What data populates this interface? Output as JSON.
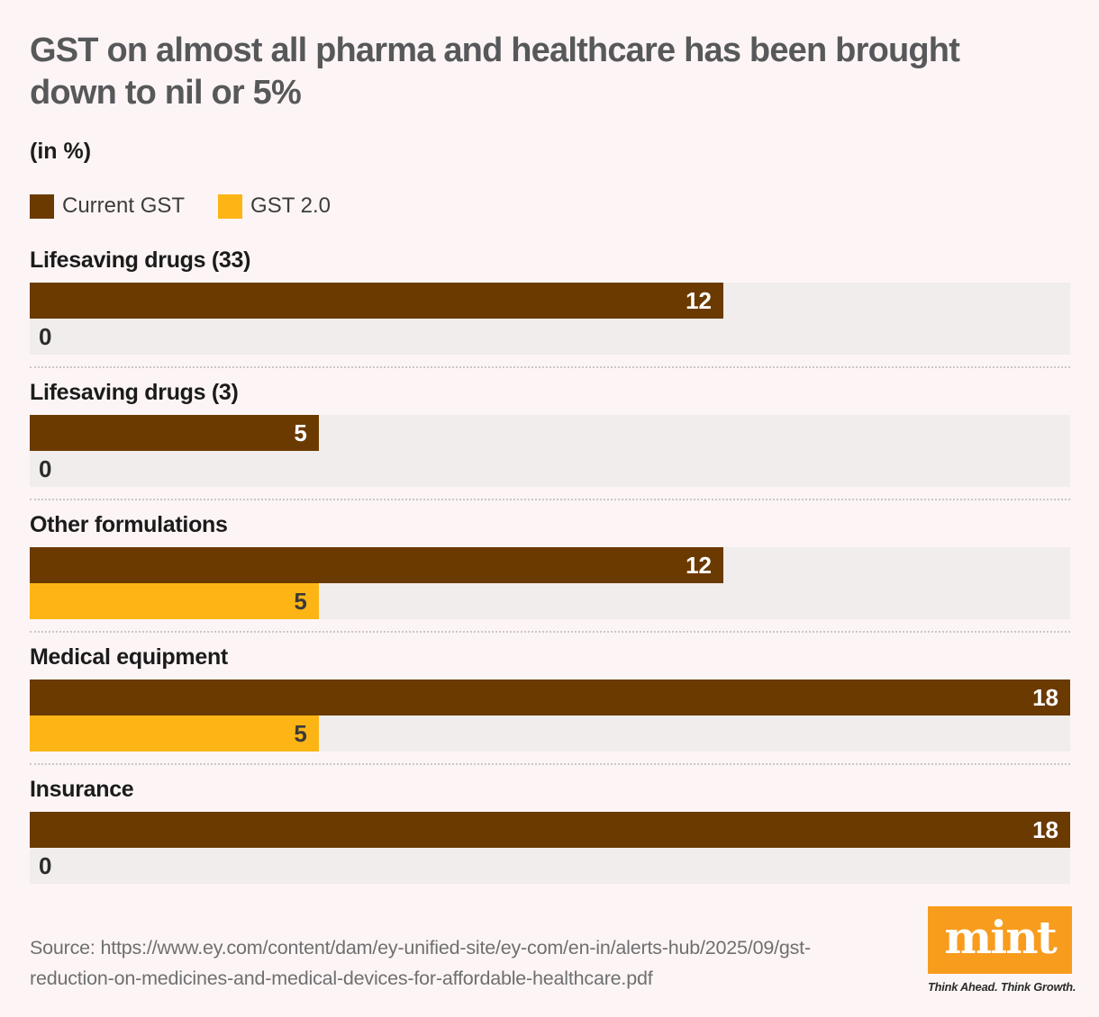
{
  "header": {
    "title_line1": "GST on almost all pharma and healthcare has been brought",
    "title_line2": "down to nil or 5%",
    "unit_label": "(in %)"
  },
  "legend": {
    "items": [
      {
        "label": "Current GST",
        "color": "#6b3a01"
      },
      {
        "label": "GST 2.0",
        "color": "#fcb515"
      }
    ]
  },
  "chart_data": {
    "type": "bar",
    "orientation": "horizontal",
    "title": "GST on almost all pharma and healthcare has been brought down to nil or 5%",
    "unit": "(in %)",
    "xlabel": "",
    "ylabel": "",
    "xlim": [
      0,
      18
    ],
    "grid": false,
    "legend_position": "top",
    "value_labels": "inside-end",
    "categories": [
      "Lifesaving drugs (33)",
      "Lifesaving drugs (3)",
      "Other formulations",
      "Medical equipment",
      "Insurance"
    ],
    "series": [
      {
        "name": "Current GST",
        "color": "#6b3a01",
        "label_color": "#ffffff",
        "values": [
          12,
          5,
          12,
          18,
          18
        ]
      },
      {
        "name": "GST 2.0",
        "color": "#fcb515",
        "label_color": "#3a3a3a",
        "values": [
          0,
          0,
          5,
          5,
          0
        ]
      }
    ]
  },
  "footer": {
    "source_line1": "Source: https://www.ey.com/content/dam/ey-unified-site/ey-com/en-in/alerts-hub/2025/09/gst-",
    "source_line2": "reduction-on-medicines-and-medical-devices-for-affordable-healthcare.pdf",
    "brand": {
      "logo_text": "mint",
      "logo_color": "#f89c1e",
      "tagline": "Think Ahead. Think Growth."
    }
  },
  "colors": {
    "background": "#fdf5f5",
    "track": "#f0edec",
    "title": "#57585a",
    "current_gst": "#6b3a01",
    "gst_2_0": "#fcb515"
  }
}
